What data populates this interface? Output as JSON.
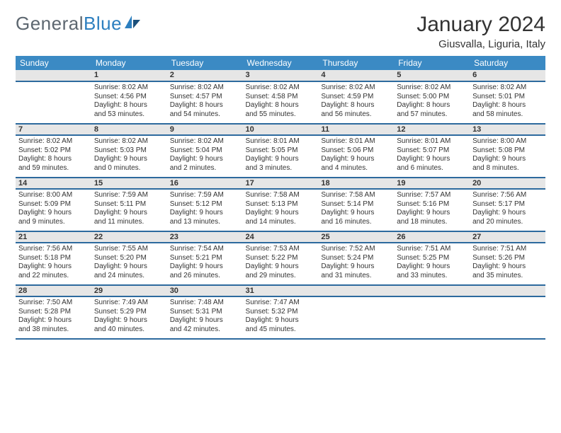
{
  "brand": {
    "name1": "General",
    "name2": "Blue"
  },
  "title": {
    "month": "January 2024",
    "location": "Giusvalla, Liguria, Italy"
  },
  "colors": {
    "headerBg": "#3b8ac4",
    "dayBg": "#e6e6e6",
    "rule": "#2d6a9e",
    "logoGrey": "#5d6770",
    "logoBlue": "#2d7fbf"
  },
  "weekdays": [
    "Sunday",
    "Monday",
    "Tuesday",
    "Wednesday",
    "Thursday",
    "Friday",
    "Saturday"
  ],
  "cells": [
    [
      {
        "n": "",
        "l1": "",
        "l2": "",
        "l3": "",
        "l4": ""
      },
      {
        "n": "1",
        "l1": "Sunrise: 8:02 AM",
        "l2": "Sunset: 4:56 PM",
        "l3": "Daylight: 8 hours",
        "l4": "and 53 minutes."
      },
      {
        "n": "2",
        "l1": "Sunrise: 8:02 AM",
        "l2": "Sunset: 4:57 PM",
        "l3": "Daylight: 8 hours",
        "l4": "and 54 minutes."
      },
      {
        "n": "3",
        "l1": "Sunrise: 8:02 AM",
        "l2": "Sunset: 4:58 PM",
        "l3": "Daylight: 8 hours",
        "l4": "and 55 minutes."
      },
      {
        "n": "4",
        "l1": "Sunrise: 8:02 AM",
        "l2": "Sunset: 4:59 PM",
        "l3": "Daylight: 8 hours",
        "l4": "and 56 minutes."
      },
      {
        "n": "5",
        "l1": "Sunrise: 8:02 AM",
        "l2": "Sunset: 5:00 PM",
        "l3": "Daylight: 8 hours",
        "l4": "and 57 minutes."
      },
      {
        "n": "6",
        "l1": "Sunrise: 8:02 AM",
        "l2": "Sunset: 5:01 PM",
        "l3": "Daylight: 8 hours",
        "l4": "and 58 minutes."
      }
    ],
    [
      {
        "n": "7",
        "l1": "Sunrise: 8:02 AM",
        "l2": "Sunset: 5:02 PM",
        "l3": "Daylight: 8 hours",
        "l4": "and 59 minutes."
      },
      {
        "n": "8",
        "l1": "Sunrise: 8:02 AM",
        "l2": "Sunset: 5:03 PM",
        "l3": "Daylight: 9 hours",
        "l4": "and 0 minutes."
      },
      {
        "n": "9",
        "l1": "Sunrise: 8:02 AM",
        "l2": "Sunset: 5:04 PM",
        "l3": "Daylight: 9 hours",
        "l4": "and 2 minutes."
      },
      {
        "n": "10",
        "l1": "Sunrise: 8:01 AM",
        "l2": "Sunset: 5:05 PM",
        "l3": "Daylight: 9 hours",
        "l4": "and 3 minutes."
      },
      {
        "n": "11",
        "l1": "Sunrise: 8:01 AM",
        "l2": "Sunset: 5:06 PM",
        "l3": "Daylight: 9 hours",
        "l4": "and 4 minutes."
      },
      {
        "n": "12",
        "l1": "Sunrise: 8:01 AM",
        "l2": "Sunset: 5:07 PM",
        "l3": "Daylight: 9 hours",
        "l4": "and 6 minutes."
      },
      {
        "n": "13",
        "l1": "Sunrise: 8:00 AM",
        "l2": "Sunset: 5:08 PM",
        "l3": "Daylight: 9 hours",
        "l4": "and 8 minutes."
      }
    ],
    [
      {
        "n": "14",
        "l1": "Sunrise: 8:00 AM",
        "l2": "Sunset: 5:09 PM",
        "l3": "Daylight: 9 hours",
        "l4": "and 9 minutes."
      },
      {
        "n": "15",
        "l1": "Sunrise: 7:59 AM",
        "l2": "Sunset: 5:11 PM",
        "l3": "Daylight: 9 hours",
        "l4": "and 11 minutes."
      },
      {
        "n": "16",
        "l1": "Sunrise: 7:59 AM",
        "l2": "Sunset: 5:12 PM",
        "l3": "Daylight: 9 hours",
        "l4": "and 13 minutes."
      },
      {
        "n": "17",
        "l1": "Sunrise: 7:58 AM",
        "l2": "Sunset: 5:13 PM",
        "l3": "Daylight: 9 hours",
        "l4": "and 14 minutes."
      },
      {
        "n": "18",
        "l1": "Sunrise: 7:58 AM",
        "l2": "Sunset: 5:14 PM",
        "l3": "Daylight: 9 hours",
        "l4": "and 16 minutes."
      },
      {
        "n": "19",
        "l1": "Sunrise: 7:57 AM",
        "l2": "Sunset: 5:16 PM",
        "l3": "Daylight: 9 hours",
        "l4": "and 18 minutes."
      },
      {
        "n": "20",
        "l1": "Sunrise: 7:56 AM",
        "l2": "Sunset: 5:17 PM",
        "l3": "Daylight: 9 hours",
        "l4": "and 20 minutes."
      }
    ],
    [
      {
        "n": "21",
        "l1": "Sunrise: 7:56 AM",
        "l2": "Sunset: 5:18 PM",
        "l3": "Daylight: 9 hours",
        "l4": "and 22 minutes."
      },
      {
        "n": "22",
        "l1": "Sunrise: 7:55 AM",
        "l2": "Sunset: 5:20 PM",
        "l3": "Daylight: 9 hours",
        "l4": "and 24 minutes."
      },
      {
        "n": "23",
        "l1": "Sunrise: 7:54 AM",
        "l2": "Sunset: 5:21 PM",
        "l3": "Daylight: 9 hours",
        "l4": "and 26 minutes."
      },
      {
        "n": "24",
        "l1": "Sunrise: 7:53 AM",
        "l2": "Sunset: 5:22 PM",
        "l3": "Daylight: 9 hours",
        "l4": "and 29 minutes."
      },
      {
        "n": "25",
        "l1": "Sunrise: 7:52 AM",
        "l2": "Sunset: 5:24 PM",
        "l3": "Daylight: 9 hours",
        "l4": "and 31 minutes."
      },
      {
        "n": "26",
        "l1": "Sunrise: 7:51 AM",
        "l2": "Sunset: 5:25 PM",
        "l3": "Daylight: 9 hours",
        "l4": "and 33 minutes."
      },
      {
        "n": "27",
        "l1": "Sunrise: 7:51 AM",
        "l2": "Sunset: 5:26 PM",
        "l3": "Daylight: 9 hours",
        "l4": "and 35 minutes."
      }
    ],
    [
      {
        "n": "28",
        "l1": "Sunrise: 7:50 AM",
        "l2": "Sunset: 5:28 PM",
        "l3": "Daylight: 9 hours",
        "l4": "and 38 minutes."
      },
      {
        "n": "29",
        "l1": "Sunrise: 7:49 AM",
        "l2": "Sunset: 5:29 PM",
        "l3": "Daylight: 9 hours",
        "l4": "and 40 minutes."
      },
      {
        "n": "30",
        "l1": "Sunrise: 7:48 AM",
        "l2": "Sunset: 5:31 PM",
        "l3": "Daylight: 9 hours",
        "l4": "and 42 minutes."
      },
      {
        "n": "31",
        "l1": "Sunrise: 7:47 AM",
        "l2": "Sunset: 5:32 PM",
        "l3": "Daylight: 9 hours",
        "l4": "and 45 minutes."
      },
      {
        "n": "",
        "l1": "",
        "l2": "",
        "l3": "",
        "l4": ""
      },
      {
        "n": "",
        "l1": "",
        "l2": "",
        "l3": "",
        "l4": ""
      },
      {
        "n": "",
        "l1": "",
        "l2": "",
        "l3": "",
        "l4": ""
      }
    ]
  ]
}
